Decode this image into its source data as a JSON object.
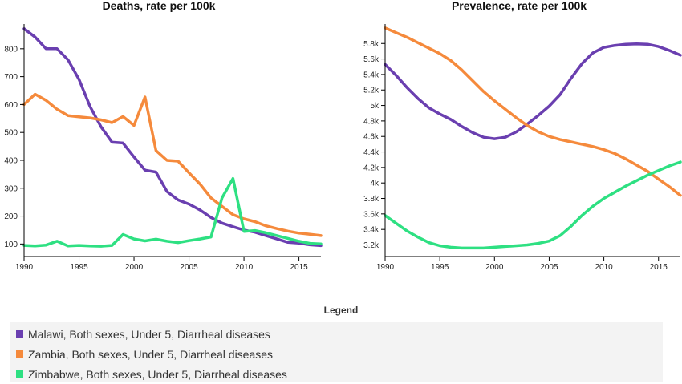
{
  "legend": {
    "title": "Legend",
    "items": [
      {
        "label": "Malawi, Both sexes, Under 5, Diarrheal diseases",
        "color": "#6a3fb0"
      },
      {
        "label": "Zambia, Both sexes, Under 5, Diarrheal diseases",
        "color": "#f58a3c"
      },
      {
        "label": "Zimbabwe, Both sexes, Under 5, Diarrheal diseases",
        "color": "#2ee082"
      }
    ]
  },
  "chart_data": [
    {
      "type": "line",
      "title": "Deaths, rate per 100k",
      "xlabel": "",
      "ylabel": "",
      "x": [
        1990,
        1991,
        1992,
        1993,
        1994,
        1995,
        1996,
        1997,
        1998,
        1999,
        2000,
        2001,
        2002,
        2003,
        2004,
        2005,
        2006,
        2007,
        2008,
        2009,
        2010,
        2011,
        2012,
        2013,
        2014,
        2015,
        2016,
        2017
      ],
      "xlim": [
        1990,
        2017
      ],
      "ylim": [
        55,
        880
      ],
      "xticks": [
        1990,
        1995,
        2000,
        2005,
        2010,
        2015
      ],
      "xtick_labels": [
        "1990",
        "1995",
        "2000",
        "2005",
        "2010",
        "2015"
      ],
      "yticks": [
        100,
        200,
        300,
        400,
        500,
        600,
        700,
        800
      ],
      "ytick_labels": [
        "100",
        "200",
        "300",
        "400",
        "500",
        "600",
        "700",
        "800"
      ],
      "grid": false,
      "series": [
        {
          "name": "Malawi, Both sexes, Under 5, Diarrheal diseases",
          "color": "#6a3fb0",
          "values": [
            872,
            842,
            800,
            800,
            760,
            690,
            593,
            520,
            465,
            462,
            412,
            365,
            358,
            288,
            258,
            243,
            222,
            195,
            175,
            162,
            150,
            142,
            130,
            118,
            106,
            103,
            97,
            94
          ]
        },
        {
          "name": "Zambia, Both sexes, Under 5, Diarrheal diseases",
          "color": "#f58a3c",
          "values": [
            600,
            637,
            615,
            583,
            560,
            556,
            552,
            545,
            535,
            557,
            525,
            627,
            435,
            400,
            397,
            355,
            315,
            265,
            235,
            205,
            190,
            180,
            165,
            155,
            146,
            139,
            135,
            130
          ]
        },
        {
          "name": "Zimbabwe, Both sexes, Under 5, Diarrheal diseases",
          "color": "#2ee082",
          "values": [
            95,
            93,
            96,
            110,
            93,
            95,
            93,
            92,
            95,
            134,
            118,
            111,
            117,
            110,
            105,
            112,
            118,
            125,
            265,
            335,
            145,
            148,
            140,
            130,
            120,
            110,
            102,
            100
          ]
        }
      ]
    },
    {
      "type": "line",
      "title": "Prevalence, rate per 100k",
      "xlabel": "",
      "ylabel": "",
      "x": [
        1990,
        1991,
        1992,
        1993,
        1994,
        1995,
        1996,
        1997,
        1998,
        1999,
        2000,
        2001,
        2002,
        2003,
        2004,
        2005,
        2006,
        2007,
        2008,
        2009,
        2010,
        2011,
        2012,
        2013,
        2014,
        2015,
        2016,
        2017
      ],
      "xlim": [
        1990,
        2017
      ],
      "ylim": [
        3050,
        6020
      ],
      "xticks": [
        1990,
        1995,
        2000,
        2005,
        2010,
        2015
      ],
      "xtick_labels": [
        "1990",
        "1995",
        "2000",
        "2005",
        "2010",
        "2015"
      ],
      "yticks": [
        3200,
        3400,
        3600,
        3800,
        4000,
        4200,
        4400,
        4600,
        4800,
        5000,
        5200,
        5400,
        5600,
        5800
      ],
      "ytick_labels": [
        "3.2k",
        "3.4k",
        "3.6k",
        "3.8k",
        "4k",
        "4.2k",
        "4.4k",
        "4.6k",
        "4.8k",
        "5k",
        "5.2k",
        "5.4k",
        "5.6k",
        "5.8k"
      ],
      "grid": false,
      "series": [
        {
          "name": "Malawi, Both sexes, Under 5, Diarrheal diseases",
          "color": "#6a3fb0",
          "values": [
            5530,
            5390,
            5230,
            5090,
            4970,
            4890,
            4820,
            4730,
            4650,
            4590,
            4570,
            4590,
            4660,
            4760,
            4870,
            4990,
            5140,
            5350,
            5540,
            5680,
            5750,
            5775,
            5790,
            5795,
            5790,
            5760,
            5710,
            5650
          ]
        },
        {
          "name": "Zambia, Both sexes, Under 5, Diarrheal diseases",
          "color": "#f58a3c",
          "values": [
            6000,
            5940,
            5880,
            5810,
            5740,
            5670,
            5580,
            5460,
            5320,
            5180,
            5060,
            4950,
            4840,
            4740,
            4660,
            4600,
            4560,
            4530,
            4500,
            4470,
            4430,
            4380,
            4310,
            4230,
            4150,
            4050,
            3950,
            3840
          ]
        },
        {
          "name": "Zimbabwe, Both sexes, Under 5, Diarrheal diseases",
          "color": "#2ee082",
          "values": [
            3580,
            3480,
            3380,
            3300,
            3230,
            3190,
            3170,
            3160,
            3160,
            3160,
            3170,
            3180,
            3190,
            3200,
            3220,
            3250,
            3320,
            3440,
            3580,
            3700,
            3800,
            3880,
            3960,
            4030,
            4100,
            4160,
            4220,
            4270
          ]
        }
      ]
    }
  ]
}
